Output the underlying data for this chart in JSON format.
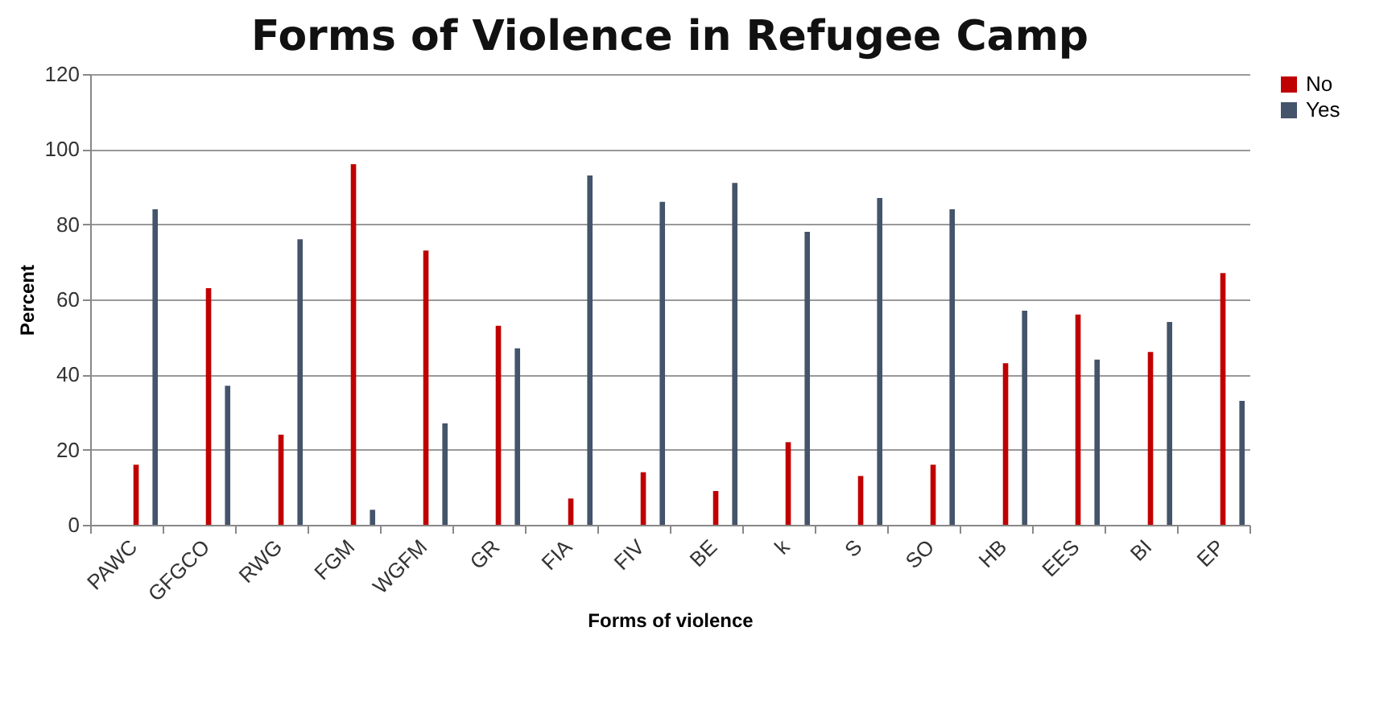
{
  "chart_data": {
    "type": "bar",
    "title": "Forms of Violence in Refugee Camp",
    "xlabel": "Forms of violence",
    "ylabel": "Percent",
    "categories": [
      "PAWC",
      "GFGCO",
      "RWG",
      "FGM",
      "WGFM",
      "GR",
      "FIA",
      "FIV",
      "BE",
      "k",
      "S",
      "SO",
      "HB",
      "EES",
      "BI",
      "EP"
    ],
    "series": [
      {
        "name": "No",
        "color": "#c00000",
        "values": [
          16,
          63,
          24,
          96,
          73,
          53,
          7,
          14,
          9,
          22,
          13,
          16,
          43,
          56,
          46,
          67
        ]
      },
      {
        "name": "Yes",
        "color": "#44546a",
        "values": [
          84,
          37,
          76,
          4,
          27,
          47,
          93,
          86,
          91,
          78,
          87,
          84,
          57,
          44,
          54,
          33
        ]
      }
    ],
    "ylim": [
      0,
      120
    ],
    "yticks": [
      0,
      20,
      40,
      60,
      80,
      100,
      120
    ],
    "grid": "y",
    "legend": "right"
  }
}
